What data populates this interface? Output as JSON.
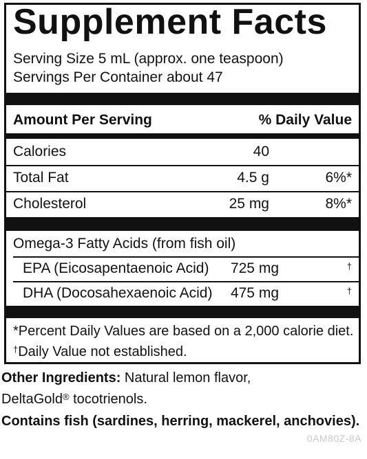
{
  "title": "Supplement Facts",
  "serving_size": "Serving Size 5 mL (approx. one teaspoon)",
  "servings_per_container": "Servings Per Container about 47",
  "header": {
    "amount_per_serving": "Amount Per Serving",
    "daily_value": "% Daily Value"
  },
  "nutrients": [
    {
      "label": "Calories",
      "amount": "40",
      "dv": ""
    },
    {
      "label": "Total Fat",
      "amount": "4.5 g",
      "dv": "6%*"
    },
    {
      "label": "Cholesterol",
      "amount": "25 mg",
      "dv": "8%*"
    }
  ],
  "omega": {
    "label": "Omega-3 Fatty Acids (from fish oil)",
    "items": [
      {
        "label": "EPA (Eicosapentaenoic Acid)",
        "amount": "725 mg",
        "dv": "†"
      },
      {
        "label": "DHA (Docosahexaenoic Acid)",
        "amount": "475 mg",
        "dv": "†"
      }
    ]
  },
  "footnotes": {
    "percent_dv": "*Percent Daily Values are based on a 2,000 calorie diet.",
    "dagger_mark": "†",
    "not_established": "Daily Value not established."
  },
  "other_ingredients": {
    "label": "Other Ingredients:",
    "text_line1": " Natural lemon flavor,",
    "brand": "DeltaGold",
    "registered": "®",
    "text_line2": " tocotrienols."
  },
  "allergen": "Contains fish (sardines, herring, mackerel, anchovies).",
  "product_code": "0AM80Z-8A"
}
